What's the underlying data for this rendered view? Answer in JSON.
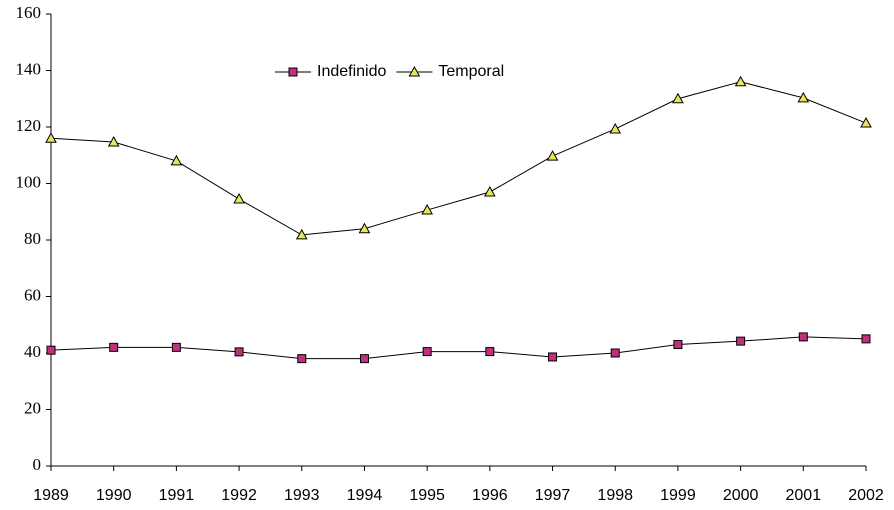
{
  "chart_data": {
    "type": "line",
    "categories": [
      "1989",
      "1990",
      "1991",
      "1992",
      "1993",
      "1994",
      "1995",
      "1996",
      "1997",
      "1998",
      "1999",
      "2000",
      "2001",
      "2002"
    ],
    "series": [
      {
        "name": "Indefinido",
        "color": "#c0307f",
        "marker": "square",
        "values": [
          41,
          42,
          42,
          40.4,
          38,
          38,
          40.5,
          40.5,
          38.6,
          40,
          43,
          44.2,
          45.7,
          45
        ]
      },
      {
        "name": "Temporal",
        "color": "#e6e65a",
        "marker": "triangle",
        "values": [
          116,
          114.7,
          108,
          94.5,
          81.8,
          84,
          90.6,
          97,
          109.7,
          119.3,
          130,
          136,
          130.3,
          121.4
        ]
      }
    ],
    "ylim": [
      0,
      160
    ],
    "yticks": [
      0,
      20,
      40,
      60,
      80,
      100,
      120,
      140,
      160
    ],
    "grid": false
  }
}
